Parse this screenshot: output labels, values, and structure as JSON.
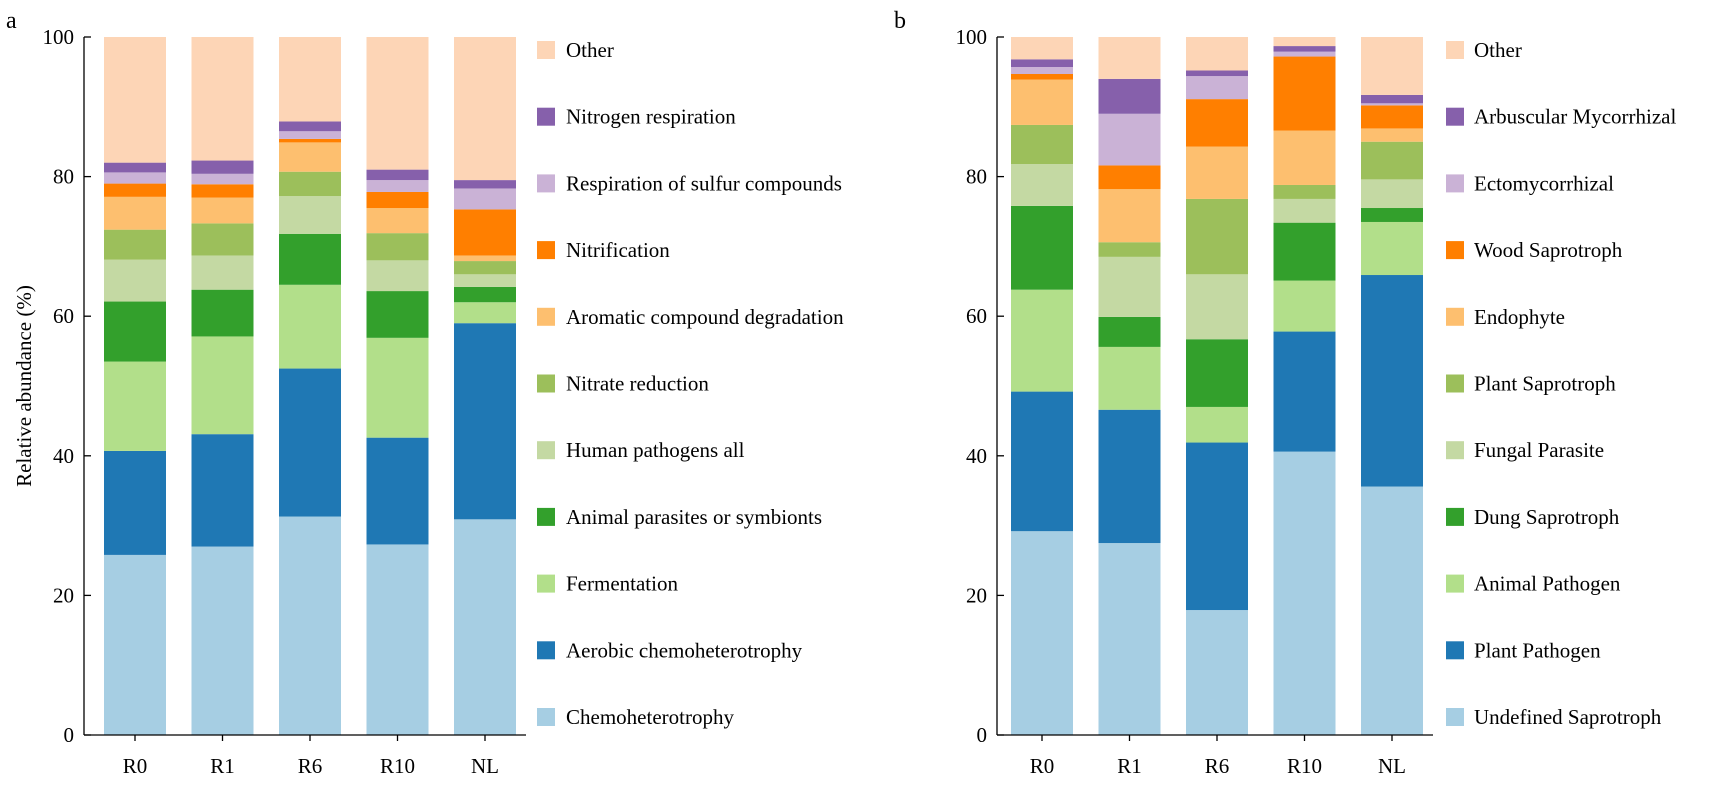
{
  "chart_data": [
    {
      "type": "bar",
      "stacked": true,
      "panel_label": "a",
      "title": "",
      "xlabel": "",
      "ylabel": "Relative abundance (%)",
      "ylim": [
        0,
        100
      ],
      "yticks": [
        "0",
        "20",
        "40",
        "60",
        "80",
        "100"
      ],
      "categories": [
        "R0",
        "R1",
        "R6",
        "R10",
        "NL"
      ],
      "legend_position": "right",
      "series": [
        {
          "name": "Chemoheterotrophy",
          "color": "#a6cee3",
          "values": [
            25.8,
            27.0,
            31.3,
            27.3,
            30.9
          ]
        },
        {
          "name": "Aerobic chemoheterotrophy",
          "color": "#1f78b4",
          "values": [
            14.9,
            16.1,
            21.2,
            15.3,
            28.1
          ]
        },
        {
          "name": "Fermentation",
          "color": "#b2df8a",
          "values": [
            12.8,
            14.0,
            12.0,
            14.3,
            3.0
          ]
        },
        {
          "name": "Animal parasites or symbionts",
          "color": "#33a02c",
          "values": [
            8.6,
            6.7,
            7.3,
            6.7,
            2.2
          ]
        },
        {
          "name": "Human pathogens all",
          "color": "#c4d9a3",
          "values": [
            6.0,
            4.9,
            5.4,
            4.4,
            1.8
          ]
        },
        {
          "name": "Nitrate reduction",
          "color": "#9cbf5b",
          "values": [
            4.3,
            4.6,
            3.5,
            3.9,
            1.9
          ]
        },
        {
          "name": "Aromatic compound degradation",
          "color": "#fdbf6f",
          "values": [
            4.7,
            3.7,
            4.2,
            3.6,
            0.8
          ]
        },
        {
          "name": "Nitrification",
          "color": "#ff7f00",
          "values": [
            1.9,
            1.9,
            0.5,
            2.3,
            6.6
          ]
        },
        {
          "name": "Respiration of sulfur compounds",
          "color": "#cab2d6",
          "values": [
            1.6,
            1.5,
            1.1,
            1.7,
            3.0
          ]
        },
        {
          "name": "Nitrogen respiration",
          "color": "#8660ab",
          "values": [
            1.4,
            1.9,
            1.4,
            1.5,
            1.2
          ]
        },
        {
          "name": "Other",
          "color": "#fdd5b6",
          "values": [
            18.0,
            17.7,
            12.1,
            19.0,
            20.5
          ]
        }
      ]
    },
    {
      "type": "bar",
      "stacked": true,
      "panel_label": "b",
      "title": "",
      "xlabel": "",
      "ylabel": "",
      "ylim": [
        0,
        100
      ],
      "yticks": [
        "0",
        "20",
        "40",
        "60",
        "80",
        "100"
      ],
      "categories": [
        "R0",
        "R1",
        "R6",
        "R10",
        "NL"
      ],
      "legend_position": "right",
      "series": [
        {
          "name": "Undefined Saprotroph",
          "color": "#a6cee3",
          "values": [
            29.2,
            27.5,
            17.9,
            40.6,
            35.6
          ]
        },
        {
          "name": "Plant Pathogen",
          "color": "#1f78b4",
          "values": [
            20.0,
            19.1,
            24.0,
            17.2,
            30.3
          ]
        },
        {
          "name": "Animal Pathogen",
          "color": "#b2df8a",
          "values": [
            14.6,
            9.0,
            5.1,
            7.3,
            7.6
          ]
        },
        {
          "name": "Dung Saprotroph",
          "color": "#33a02c",
          "values": [
            12.0,
            4.3,
            9.7,
            8.3,
            2.0
          ]
        },
        {
          "name": "Fungal Parasite",
          "color": "#c4d9a3",
          "values": [
            6.0,
            8.6,
            9.3,
            3.4,
            4.1
          ]
        },
        {
          "name": "Plant Saprotroph",
          "color": "#9cbf5b",
          "values": [
            5.6,
            2.1,
            10.8,
            2.0,
            5.4
          ]
        },
        {
          "name": "Endophyte",
          "color": "#fdbf6f",
          "values": [
            6.5,
            7.6,
            7.5,
            7.8,
            1.9
          ]
        },
        {
          "name": "Wood Saprotroph",
          "color": "#ff7f00",
          "values": [
            0.8,
            3.4,
            6.8,
            10.6,
            3.3
          ]
        },
        {
          "name": "Ectomycorrhizal",
          "color": "#cab2d6",
          "values": [
            1.0,
            7.4,
            3.3,
            0.7,
            0.3
          ]
        },
        {
          "name": "Arbuscular Mycorrhizal",
          "color": "#8660ab",
          "values": [
            1.1,
            5.0,
            0.8,
            0.8,
            1.2
          ]
        },
        {
          "name": "Other",
          "color": "#fdd5b6",
          "values": [
            3.2,
            6.0,
            4.8,
            1.3,
            8.3
          ]
        }
      ]
    }
  ]
}
